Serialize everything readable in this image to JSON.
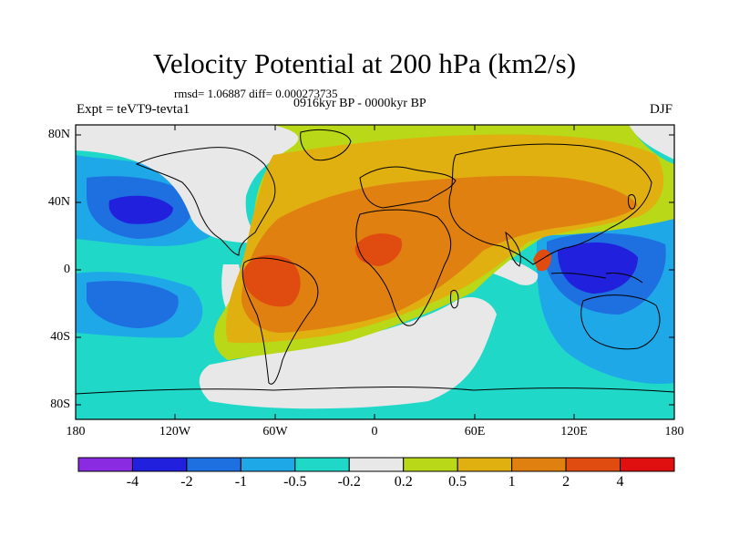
{
  "title": "Velocity Potential at 200 hPa (km2/s)",
  "stats": "rmsd= 1.06887 diff= 0.000273735",
  "period": "0916kyr BP - 0000kyr BP",
  "experiment": "Expt = teVT9-tevta1",
  "season": "DJF",
  "lat_labels": [
    "80N",
    "40N",
    "0",
    "40S",
    "80S"
  ],
  "lon_labels": [
    "180",
    "120W",
    "60W",
    "0",
    "60E",
    "120E",
    "180"
  ],
  "colorbar": {
    "colors": [
      "#8a2be2",
      "#2020dd",
      "#1e6fe0",
      "#1ea8e8",
      "#20d8c8",
      "#e8e8e8",
      "#b8d818",
      "#e0b010",
      "#e08010",
      "#e04c10",
      "#e01010"
    ],
    "labels": [
      "-4",
      "-2",
      "-1",
      "-0.5",
      "-0.2",
      "0.2",
      "0.5",
      "1",
      "2",
      "4"
    ]
  },
  "map_colors": {
    "ocean_neg_light": "#20d8c8",
    "neg_mid": "#1ea8e8",
    "neg_strong": "#1e6fe0",
    "neg_max": "#2020dd",
    "neutral": "#e8e8e8",
    "pos_weak": "#b8d818",
    "pos_mid": "#e0b010",
    "pos_strong": "#e08010",
    "pos_max": "#e04c10"
  }
}
